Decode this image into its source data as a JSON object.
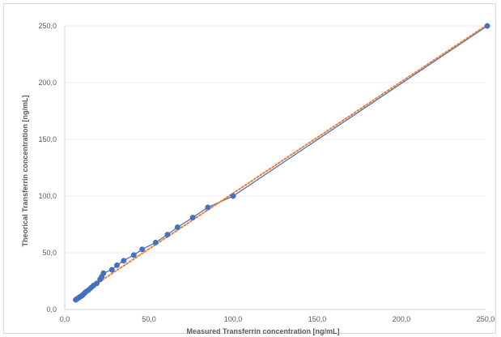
{
  "chart_data": {
    "type": "scatter",
    "xlabel": "Measured Transferrin concentration [ng/mL]",
    "ylabel": "Theorical Transferrin concentration [ng/mL]",
    "xlim": [
      0,
      250
    ],
    "ylim": [
      0,
      250
    ],
    "x_ticks": [
      "0,0",
      "50,0",
      "100,0",
      "150,0",
      "200,0",
      "250,0"
    ],
    "y_ticks": [
      "0,0",
      "50,0",
      "100,0",
      "150,0",
      "200,0",
      "250,0"
    ],
    "grid": "horizontal",
    "legend": "none",
    "series": [
      {
        "type": "scatter-with-line",
        "color": "#4472c4",
        "points": [
          [
            6.5,
            8.5
          ],
          [
            7.5,
            9.5
          ],
          [
            8.5,
            10.5
          ],
          [
            9.5,
            11.5
          ],
          [
            10.5,
            12.5
          ],
          [
            11.5,
            14
          ],
          [
            12.5,
            15.5
          ],
          [
            14,
            17
          ],
          [
            15.5,
            19
          ],
          [
            17,
            21
          ],
          [
            19,
            23
          ],
          [
            21,
            26.5
          ],
          [
            22,
            29
          ],
          [
            23,
            32
          ],
          [
            28,
            35
          ],
          [
            31,
            39
          ],
          [
            35,
            43
          ],
          [
            41,
            48
          ],
          [
            46,
            53
          ],
          [
            54,
            59
          ],
          [
            61,
            66
          ],
          [
            67,
            72.5
          ],
          [
            76,
            81
          ],
          [
            85,
            90
          ],
          [
            100,
            100
          ],
          [
            251,
            250
          ]
        ]
      },
      {
        "type": "trendline",
        "color": "#ed7d31",
        "style": "dotted",
        "from": [
          6,
          10
        ],
        "to": [
          251,
          251
        ]
      }
    ]
  }
}
